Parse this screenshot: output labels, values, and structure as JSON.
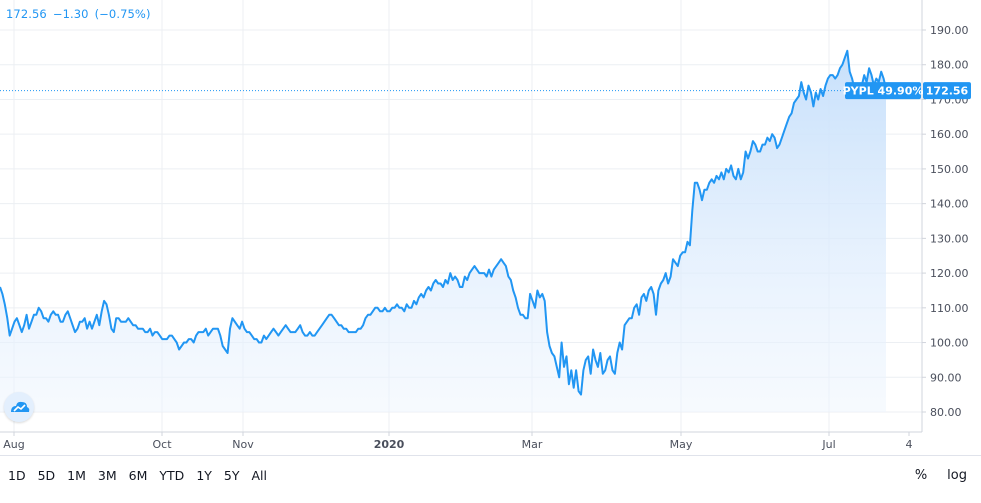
{
  "header": {
    "price": "172.56",
    "change": "−1.30",
    "change_pct": "(−0.75%)"
  },
  "symbol_label": {
    "symbol": "PYPL 49.90%",
    "price": "172.56"
  },
  "logo_icon": "tradingview-cloud-icon",
  "time_ranges": [
    "1D",
    "5D",
    "1M",
    "3M",
    "6M",
    "YTD",
    "1Y",
    "5Y",
    "All"
  ],
  "right_controls": {
    "percent": "%",
    "log": "log"
  },
  "colors": {
    "line": "#2196f3",
    "fill_top": "#c7e0fb",
    "fill_bottom": "#eef5fe",
    "label_bg": "#2196f3"
  },
  "chart_data": {
    "type": "area",
    "title": "",
    "xlabel": "",
    "ylabel": "",
    "ylim": [
      75,
      195
    ],
    "y_ticks": [
      "80.00",
      "90.00",
      "100.00",
      "110.00",
      "120.00",
      "130.00",
      "140.00",
      "150.00",
      "160.00",
      "170.00",
      "180.00",
      "190.00"
    ],
    "x_ticks": [
      "Aug",
      "Oct",
      "Nov",
      "2020",
      "Mar",
      "May",
      "Jul",
      "4"
    ],
    "last_price": 172.56,
    "series": [
      {
        "values": [
          116,
          114,
          111,
          107,
          102,
          104,
          106,
          107,
          105,
          103,
          105,
          108,
          104,
          106,
          108,
          108,
          110,
          109,
          107,
          107,
          106,
          108,
          109,
          108,
          108,
          106,
          106,
          108,
          109,
          107,
          105,
          103,
          104,
          106,
          106,
          107,
          104,
          106,
          104,
          106,
          108,
          105,
          109,
          112,
          111,
          108,
          104,
          103,
          107,
          107,
          106,
          106,
          106,
          107,
          106,
          105,
          105,
          104,
          104,
          104,
          103,
          103,
          104,
          102,
          103,
          103,
          102,
          101,
          101,
          101,
          102,
          102,
          101,
          100,
          98,
          99,
          100,
          100,
          101,
          101,
          100,
          102,
          103,
          103,
          103,
          104,
          102,
          103,
          104,
          104,
          104,
          102,
          99,
          98,
          97,
          104,
          107,
          106,
          105,
          104,
          106,
          104,
          103,
          103,
          102,
          101,
          101,
          100,
          100,
          102,
          101,
          102,
          103,
          104,
          103,
          102,
          103,
          104,
          105,
          104,
          103,
          103,
          103,
          104,
          105,
          103,
          102,
          102,
          103,
          102,
          102,
          103,
          104,
          105,
          106,
          107,
          108,
          108,
          107,
          106,
          105,
          105,
          104,
          104,
          103,
          103,
          103,
          103,
          104,
          104,
          105,
          107,
          108,
          108,
          109,
          110,
          110,
          109,
          109,
          110,
          109,
          109,
          110,
          110,
          111,
          110,
          110,
          109,
          111,
          110,
          110,
          112,
          111,
          113,
          114,
          113,
          115,
          116,
          115,
          117,
          118,
          117,
          117,
          116,
          118,
          117,
          120,
          118,
          119,
          118,
          116,
          116,
          119,
          118,
          120,
          121,
          122,
          121,
          120,
          120,
          120,
          119,
          121,
          119,
          121,
          122,
          123,
          124,
          123,
          122,
          119,
          118,
          115,
          113,
          110,
          108,
          108,
          107,
          107,
          114,
          112,
          110,
          115,
          113,
          114,
          112,
          103,
          99,
          97,
          96,
          93,
          90,
          100,
          93,
          96,
          88,
          92,
          87,
          92,
          86,
          85,
          92,
          95,
          96,
          91,
          98,
          95,
          93,
          97,
          91,
          92,
          95,
          96,
          92,
          91,
          97,
          100,
          98,
          105,
          106,
          107,
          107,
          110,
          111,
          108,
          113,
          114,
          112,
          115,
          116,
          114,
          108,
          115,
          117,
          118,
          120,
          117,
          119,
          124,
          123,
          122,
          125,
          126,
          126,
          129,
          128,
          138,
          146,
          146,
          144,
          141,
          144,
          144,
          146,
          147,
          146,
          148,
          147,
          149,
          147,
          150,
          149,
          151,
          148,
          147,
          150,
          147,
          149,
          155,
          153,
          155,
          158,
          157,
          155,
          155,
          157,
          157,
          159,
          158,
          160,
          159,
          156,
          157,
          159,
          161,
          163,
          165,
          166,
          169,
          170,
          171,
          175,
          172,
          170,
          174,
          172,
          168,
          172,
          170,
          173,
          171,
          174,
          176,
          177,
          177,
          176,
          177,
          179,
          180,
          182,
          184,
          178,
          176,
          173,
          174,
          171,
          174,
          177,
          175,
          179,
          177,
          174,
          176,
          175,
          178,
          176,
          173
        ]
      }
    ]
  }
}
